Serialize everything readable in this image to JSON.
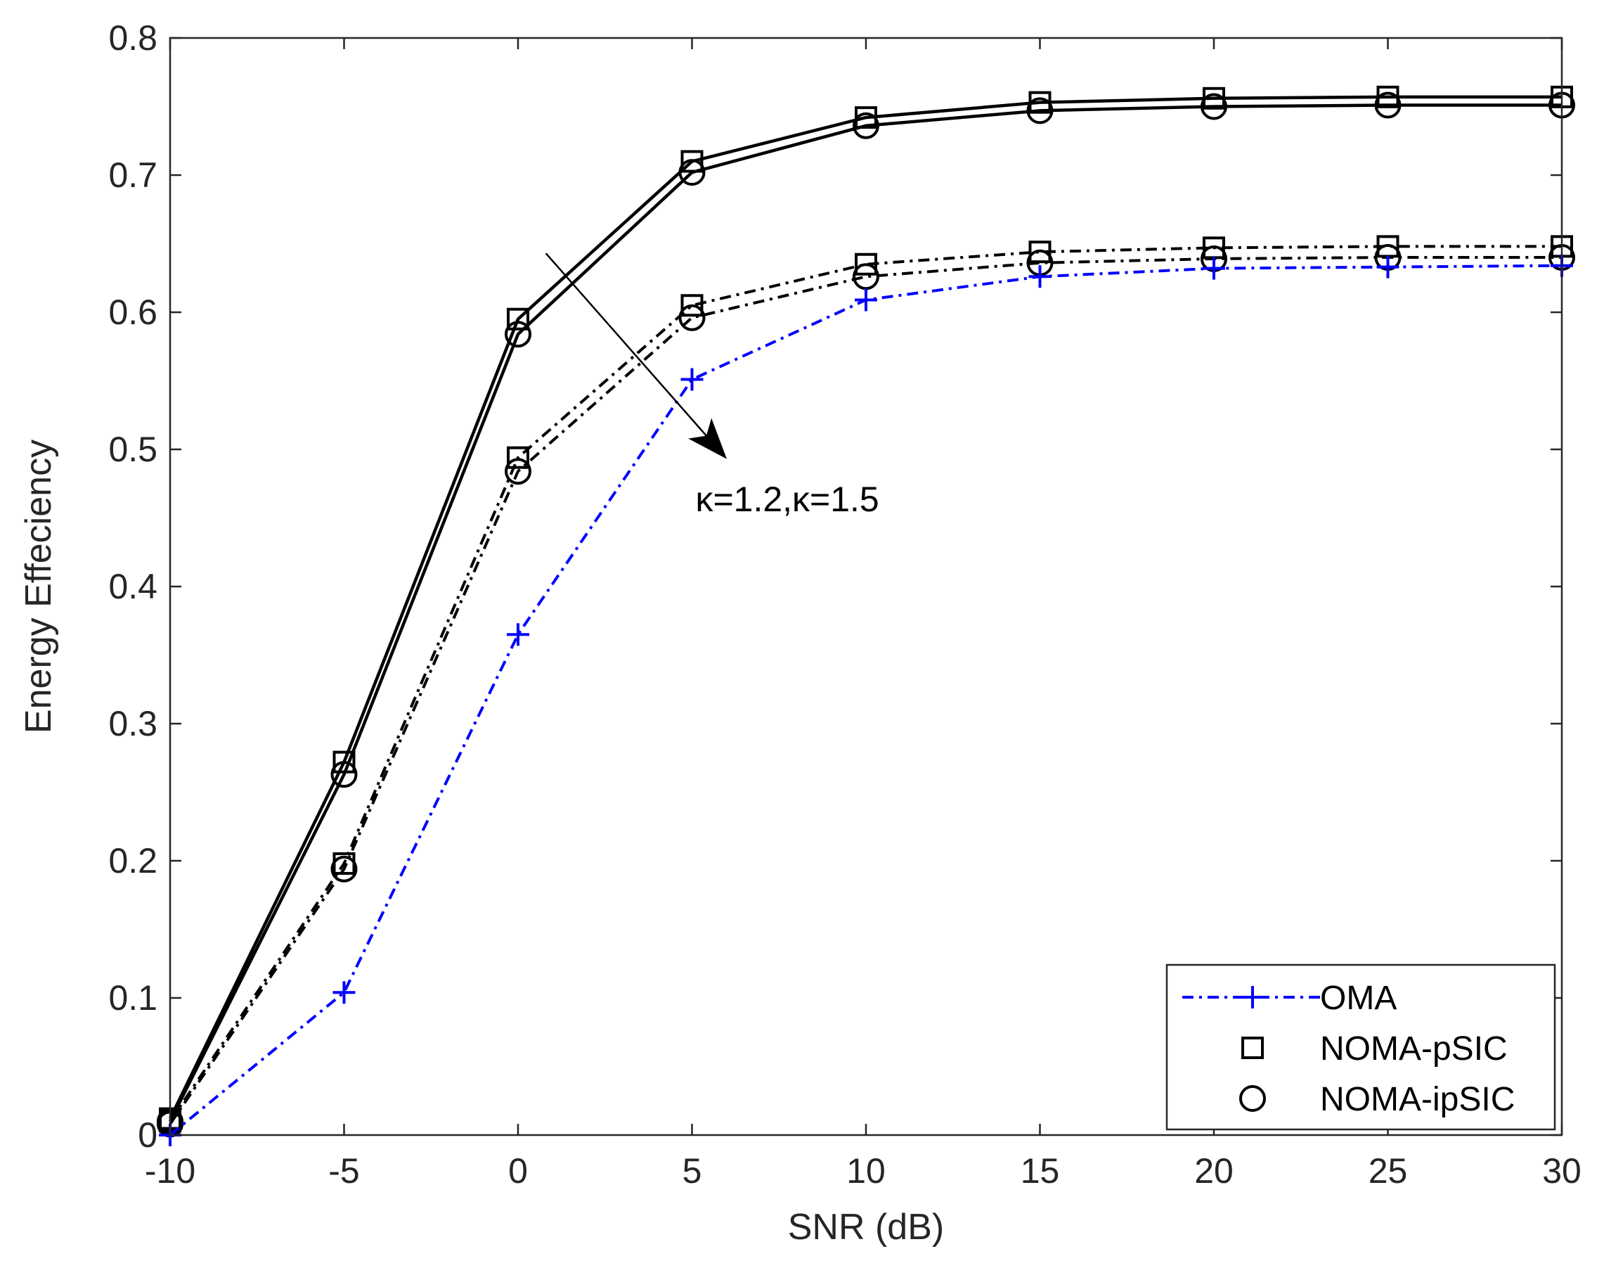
{
  "chart_data": {
    "type": "line",
    "title": "",
    "xlabel": "SNR (dB)",
    "ylabel": "Energy Effeciency",
    "xlim": [
      -10,
      30
    ],
    "ylim": [
      0,
      0.8
    ],
    "x_ticks": [
      -10,
      -5,
      0,
      5,
      10,
      15,
      20,
      25,
      30
    ],
    "x_tick_labels": [
      "-10",
      "-5",
      "0",
      "5",
      "10",
      "15",
      "20",
      "25",
      "30"
    ],
    "y_ticks": [
      0,
      0.1,
      0.2,
      0.3,
      0.4,
      0.5,
      0.6,
      0.7,
      0.8
    ],
    "y_tick_labels": [
      "0",
      "0.1",
      "0.2",
      "0.3",
      "0.4",
      "0.5",
      "0.6",
      "0.7",
      "0.8"
    ],
    "grid": false,
    "legend_position": "bottom-right",
    "legend": [
      {
        "label": "OMA",
        "marker": "plus",
        "color": "#0000ff",
        "line": "dashdot"
      },
      {
        "label": "NOMA-pSIC",
        "marker": "square",
        "color": "#000000",
        "line": "none"
      },
      {
        "label": "NOMA-ipSIC",
        "marker": "circle",
        "color": "#000000",
        "line": "none"
      }
    ],
    "x": [
      -10,
      -5,
      0,
      5,
      10,
      15,
      20,
      25,
      30
    ],
    "series": [
      {
        "name": "OMA",
        "color": "#0000ff",
        "line": "dashdot",
        "marker": "plus",
        "values": [
          0.0,
          0.104,
          0.365,
          0.551,
          0.609,
          0.626,
          0.632,
          0.633,
          0.634
        ]
      },
      {
        "name": "NOMA-pSIC, κ=1.2",
        "color": "#000000",
        "line": "solid",
        "marker": "square",
        "values": [
          0.012,
          0.272,
          0.595,
          0.71,
          0.742,
          0.753,
          0.756,
          0.757,
          0.757
        ]
      },
      {
        "name": "NOMA-ipSIC, κ=1.2",
        "color": "#000000",
        "line": "solid",
        "marker": "circle",
        "values": [
          0.01,
          0.263,
          0.584,
          0.702,
          0.736,
          0.747,
          0.75,
          0.751,
          0.751
        ]
      },
      {
        "name": "NOMA-pSIC, κ=1.5",
        "color": "#000000",
        "line": "dashdot",
        "marker": "square",
        "values": [
          0.01,
          0.198,
          0.494,
          0.605,
          0.635,
          0.644,
          0.647,
          0.648,
          0.648
        ]
      },
      {
        "name": "NOMA-ipSIC, κ=1.5",
        "color": "#000000",
        "line": "dashdot",
        "marker": "circle",
        "values": [
          0.008,
          0.194,
          0.484,
          0.596,
          0.626,
          0.636,
          0.639,
          0.64,
          0.64
        ]
      }
    ],
    "annotations": [
      {
        "text": "κ=1.2,κ=1.5",
        "arrow_from": [
          0.8,
          0.643
        ],
        "arrow_to": [
          6.0,
          0.493
        ],
        "text_at": [
          5.1,
          0.455
        ]
      }
    ]
  }
}
